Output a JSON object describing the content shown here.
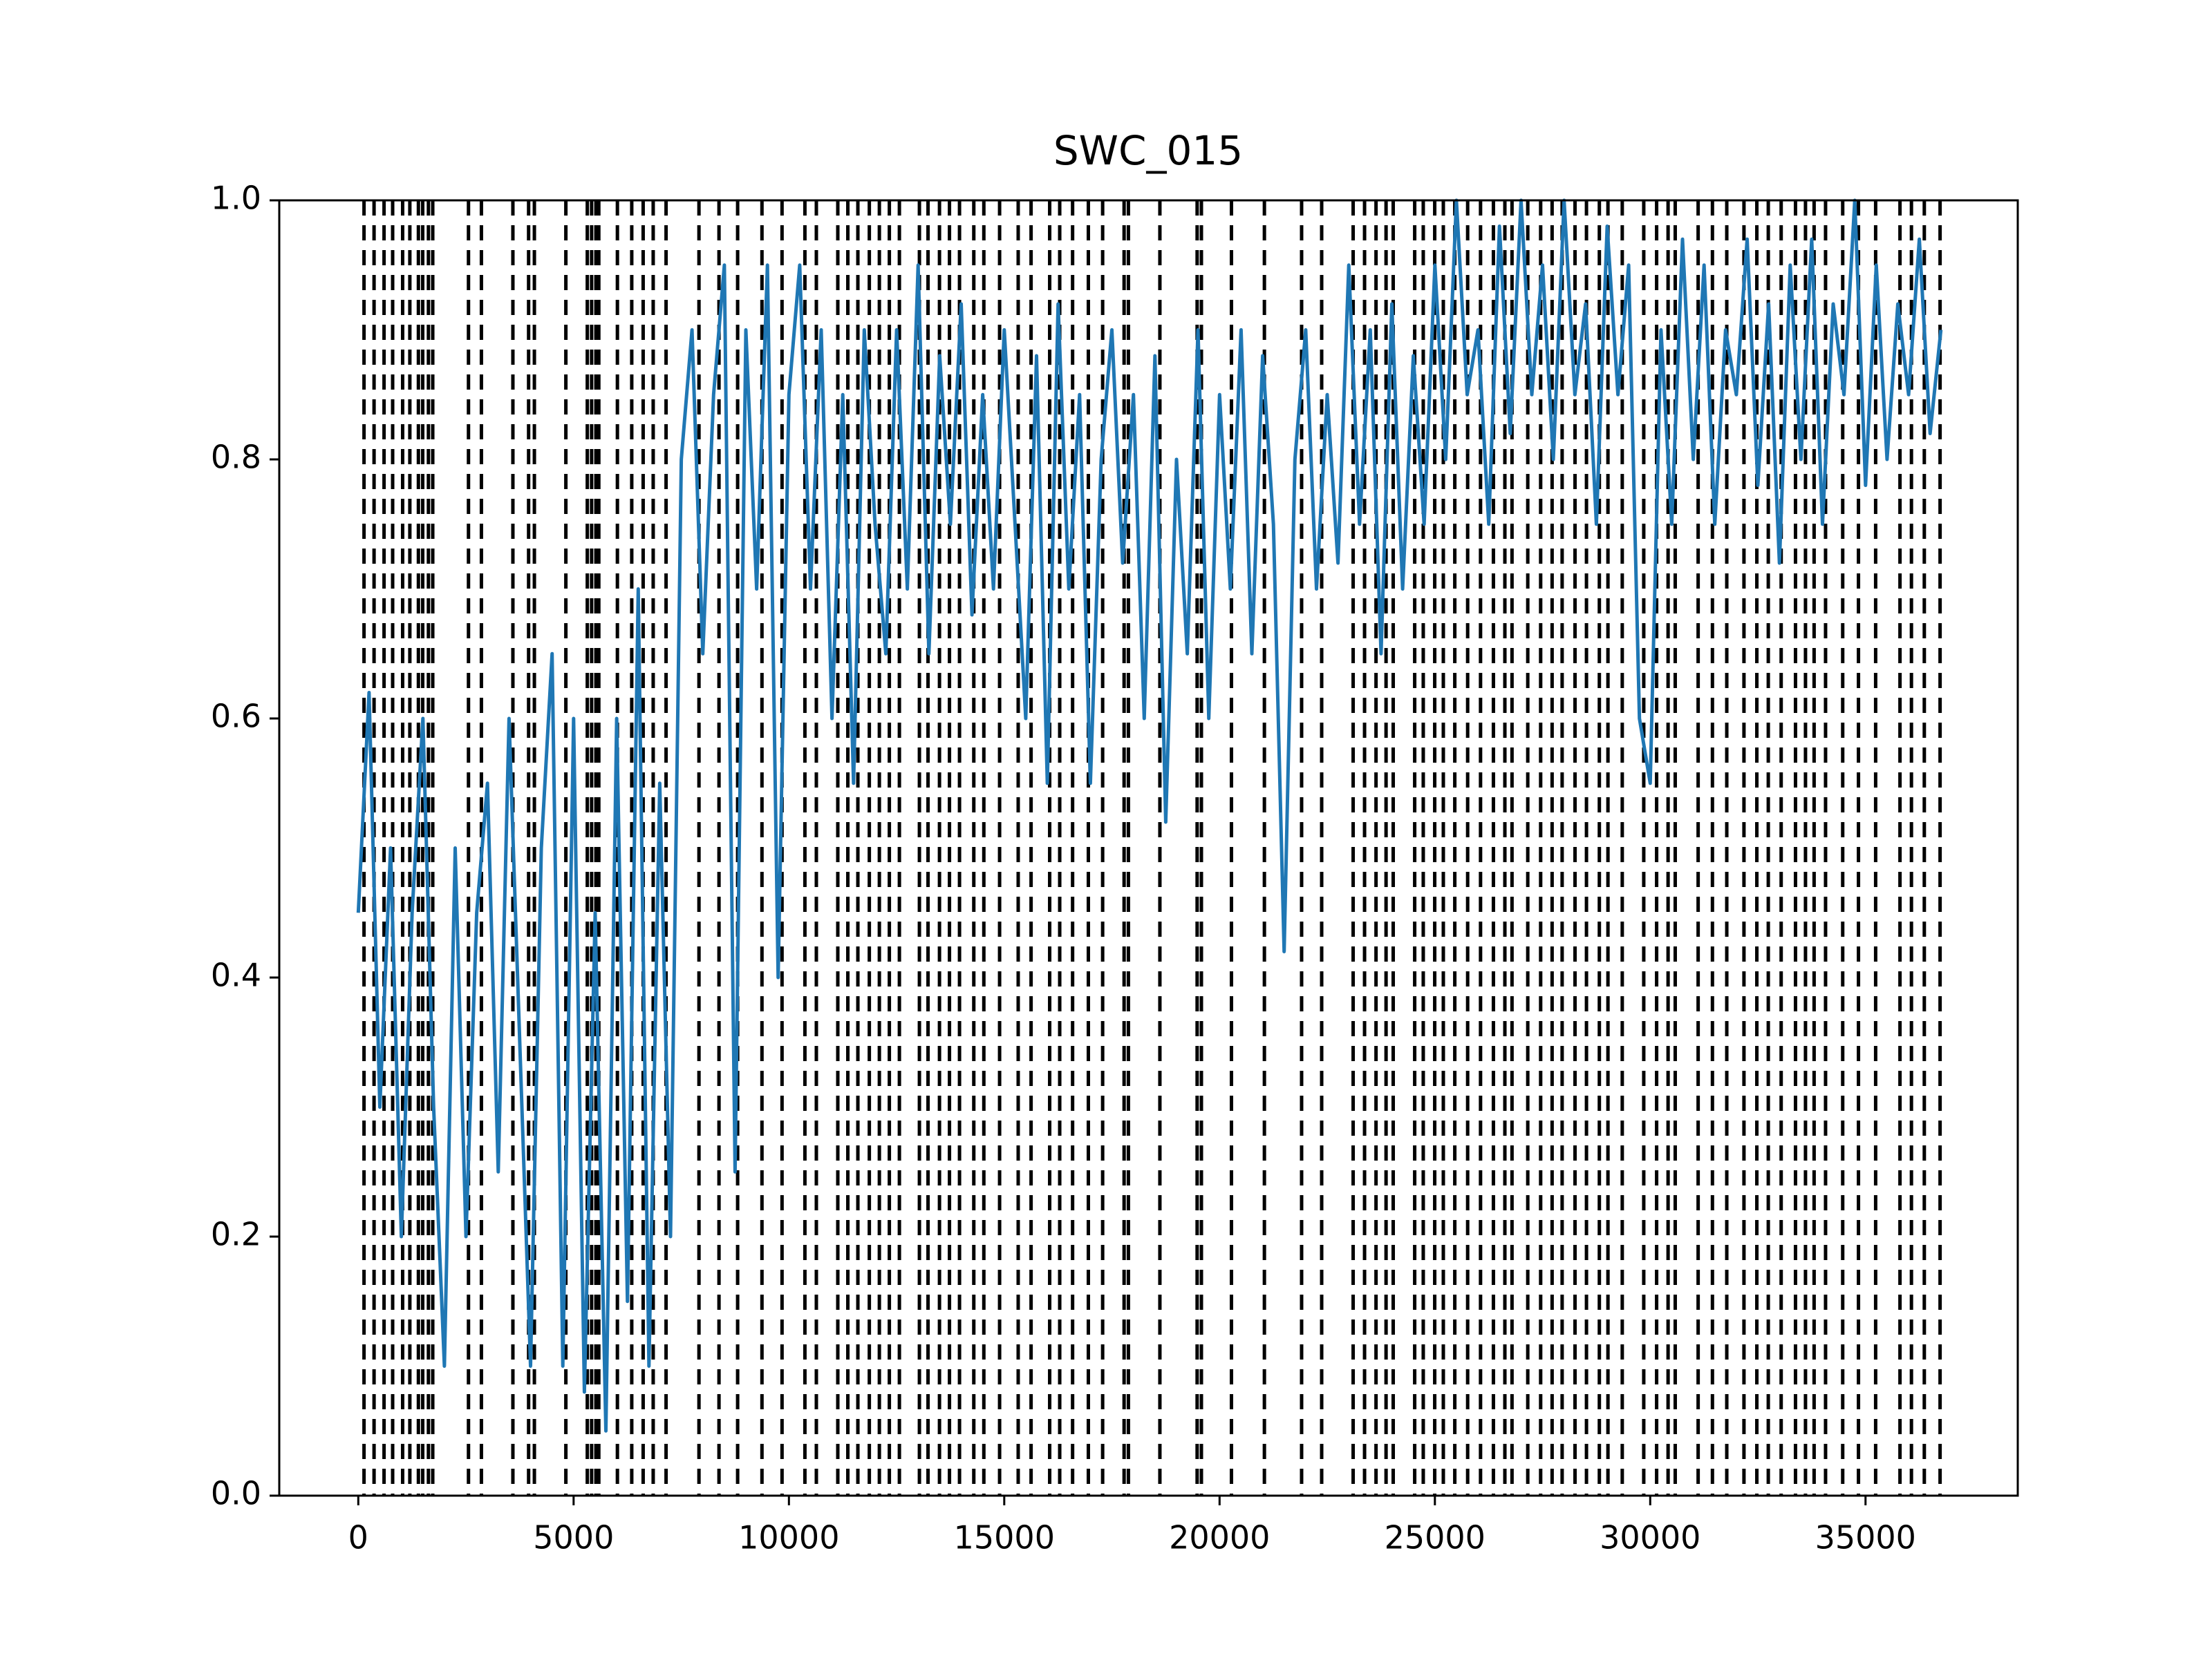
{
  "chart_data": {
    "type": "line",
    "title": "SWC_015",
    "x": [
      0,
      250,
      500,
      750,
      1000,
      1250,
      1500,
      1750,
      2000,
      2250,
      2500,
      2750,
      3000,
      3250,
      3500,
      3750,
      4000,
      4250,
      4500,
      4750,
      5000,
      5250,
      5500,
      5750,
      6000,
      6250,
      6500,
      6750,
      7000,
      7250,
      7500,
      7750,
      8000,
      8250,
      8500,
      8750,
      9000,
      9250,
      9500,
      9750,
      10000,
      10250,
      10500,
      10750,
      11000,
      11250,
      11500,
      11750,
      12000,
      12250,
      12500,
      12750,
      13000,
      13250,
      13500,
      13750,
      14000,
      14250,
      14500,
      14750,
      15000,
      15250,
      15500,
      15750,
      16000,
      16250,
      16500,
      16750,
      17000,
      17250,
      17500,
      17750,
      18000,
      18250,
      18500,
      18750,
      19000,
      19250,
      19500,
      19750,
      20000,
      20250,
      20500,
      20750,
      21000,
      21250,
      21500,
      21750,
      22000,
      22250,
      22500,
      22750,
      23000,
      23250,
      23500,
      23750,
      24000,
      24250,
      24500,
      24750,
      25000,
      25250,
      25500,
      25750,
      26000,
      26250,
      26500,
      26750,
      27000,
      27250,
      27500,
      27750,
      28000,
      28250,
      28500,
      28750,
      29000,
      29250,
      29500,
      29750,
      30000,
      30250,
      30500,
      30750,
      31000,
      31250,
      31500,
      31750,
      32000,
      32250,
      32500,
      32750,
      33000,
      33250,
      33500,
      33750,
      34000,
      34250,
      34500,
      34750,
      35000,
      35250,
      35500,
      35750,
      36000,
      36250,
      36500,
      36750
    ],
    "series": [
      {
        "color": "#1f77b4",
        "values": [
          0.45,
          0.62,
          0.3,
          0.5,
          0.2,
          0.45,
          0.6,
          0.3,
          0.1,
          0.5,
          0.2,
          0.45,
          0.55,
          0.25,
          0.6,
          0.35,
          0.1,
          0.5,
          0.65,
          0.1,
          0.6,
          0.08,
          0.45,
          0.05,
          0.6,
          0.15,
          0.7,
          0.1,
          0.55,
          0.2,
          0.8,
          0.9,
          0.65,
          0.85,
          0.95,
          0.25,
          0.9,
          0.7,
          0.95,
          0.4,
          0.85,
          0.95,
          0.7,
          0.9,
          0.6,
          0.85,
          0.55,
          0.9,
          0.75,
          0.65,
          0.9,
          0.7,
          0.95,
          0.65,
          0.88,
          0.75,
          0.92,
          0.68,
          0.85,
          0.7,
          0.9,
          0.75,
          0.6,
          0.88,
          0.55,
          0.92,
          0.7,
          0.85,
          0.55,
          0.8,
          0.9,
          0.72,
          0.85,
          0.6,
          0.88,
          0.52,
          0.8,
          0.65,
          0.9,
          0.6,
          0.85,
          0.7,
          0.9,
          0.65,
          0.88,
          0.75,
          0.42,
          0.8,
          0.9,
          0.7,
          0.85,
          0.72,
          0.95,
          0.75,
          0.9,
          0.65,
          0.92,
          0.7,
          0.88,
          0.75,
          0.95,
          0.8,
          1.0,
          0.85,
          0.9,
          0.75,
          0.98,
          0.82,
          1.0,
          0.85,
          0.95,
          0.8,
          1.0,
          0.85,
          0.92,
          0.75,
          0.98,
          0.85,
          0.95,
          0.6,
          0.55,
          0.9,
          0.75,
          0.97,
          0.8,
          0.95,
          0.75,
          0.9,
          0.85,
          0.97,
          0.78,
          0.92,
          0.72,
          0.95,
          0.8,
          0.97,
          0.75,
          0.92,
          0.85,
          1.0,
          0.78,
          0.95,
          0.8,
          0.92,
          0.85,
          0.97,
          0.82,
          0.9
        ]
      }
    ],
    "vlines": [
      133,
      366,
      598,
      798,
      1030,
      1197,
      1396,
      1496,
      1629,
      1729,
      2559,
      2859,
      3590,
      3955,
      4089,
      4820,
      5318,
      5418,
      5518,
      5585,
      6017,
      6350,
      6615,
      6848,
      7147,
      7911,
      8376,
      8809,
      9374,
      9840,
      10371,
      10637,
      11135,
      11368,
      11601,
      11867,
      12100,
      12332,
      12565,
      13030,
      13230,
      13496,
      13728,
      13961,
      14293,
      14526,
      14892,
      15324,
      15623,
      16055,
      16288,
      16587,
      16953,
      17285,
      17783,
      17883,
      18614,
      19479,
      19578,
      20276,
      21041,
      21905,
      22371,
      23102,
      23367,
      23633,
      23866,
      24032,
      24531,
      24730,
      24996,
      25196,
      25462,
      25761,
      26060,
      26359,
      26625,
      26791,
      27157,
      27456,
      27722,
      27955,
      28254,
      28520,
      28819,
      29019,
      29351,
      29850,
      30149,
      30415,
      30581,
      31113,
      31445,
      31778,
      32177,
      32476,
      32742,
      33041,
      33374,
      33606,
      33806,
      34072,
      34470,
      34836,
      35235,
      35800,
      36066,
      36365,
      36731
    ],
    "vline_color": "#000000",
    "xlim": [
      -1835,
      38535
    ],
    "xticks": [
      0,
      5000,
      10000,
      15000,
      20000,
      25000,
      30000,
      35000
    ],
    "ylim": [
      0,
      1
    ],
    "yticks": [
      {
        "value": 0,
        "label": "0.0"
      },
      0.2,
      0.4,
      0.6,
      0.8,
      {
        "value": 1,
        "label": "1.0"
      }
    ],
    "grid": false
  }
}
